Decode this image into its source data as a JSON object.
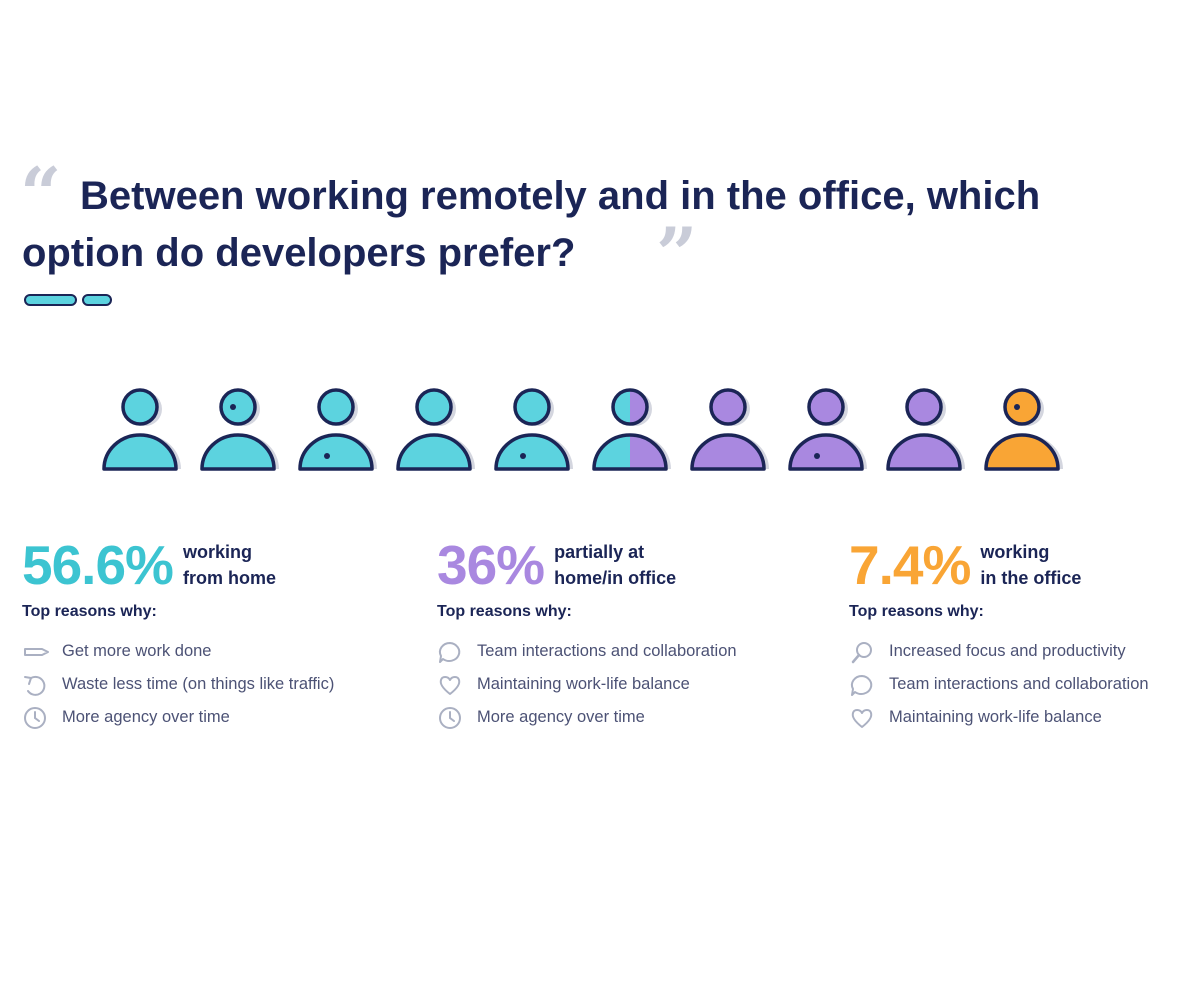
{
  "title": {
    "line1": "Between working remotely and in the office, which",
    "line2": "option do developers prefer?"
  },
  "quote_open": "“",
  "quote_close": "”",
  "colors": {
    "navy": "#1b2556",
    "teal": "#5cd3df",
    "purple": "#a988e0",
    "orange": "#f9a535",
    "quote_gray": "#c9ccd8"
  },
  "people": [
    {
      "style": "teal",
      "dot": "none"
    },
    {
      "style": "teal",
      "dot": "head"
    },
    {
      "style": "teal",
      "dot": "body"
    },
    {
      "style": "teal",
      "dot": "none"
    },
    {
      "style": "teal",
      "dot": "body"
    },
    {
      "style": "split",
      "dot": "none"
    },
    {
      "style": "purple",
      "dot": "none"
    },
    {
      "style": "purple",
      "dot": "body"
    },
    {
      "style": "purple",
      "dot": "none"
    },
    {
      "style": "orange",
      "dot": "head"
    }
  ],
  "stats": [
    {
      "percent": "56.6%",
      "color": "#3cc4d1",
      "desc_line1": "working",
      "desc_line2": "from home",
      "why": "Top reasons why:",
      "reasons": [
        {
          "icon": "pencil-icon",
          "text": "Get more work done"
        },
        {
          "icon": "undo-arrow-icon",
          "text": "Waste less time (on things like traffic)"
        },
        {
          "icon": "clock-icon",
          "text": "More agency over time"
        }
      ]
    },
    {
      "percent": "36%",
      "color": "#a988e0",
      "desc_line1": "partially at",
      "desc_line2": "home/in office",
      "why": "Top reasons why:",
      "reasons": [
        {
          "icon": "chat-bubble-icon",
          "text": "Team interactions and collaboration"
        },
        {
          "icon": "heart-icon",
          "text": "Maintaining work-life balance"
        },
        {
          "icon": "clock-icon",
          "text": "More agency over time"
        }
      ]
    },
    {
      "percent": "7.4%",
      "color": "#f9a535",
      "desc_line1": "working",
      "desc_line2": "in the office",
      "why": "Top reasons why:",
      "reasons": [
        {
          "icon": "magnifier-icon",
          "text": "Increased focus and productivity"
        },
        {
          "icon": "chat-bubble-icon",
          "text": "Team interactions and collaboration"
        },
        {
          "icon": "heart-icon",
          "text": "Maintaining work-life balance"
        }
      ]
    }
  ]
}
